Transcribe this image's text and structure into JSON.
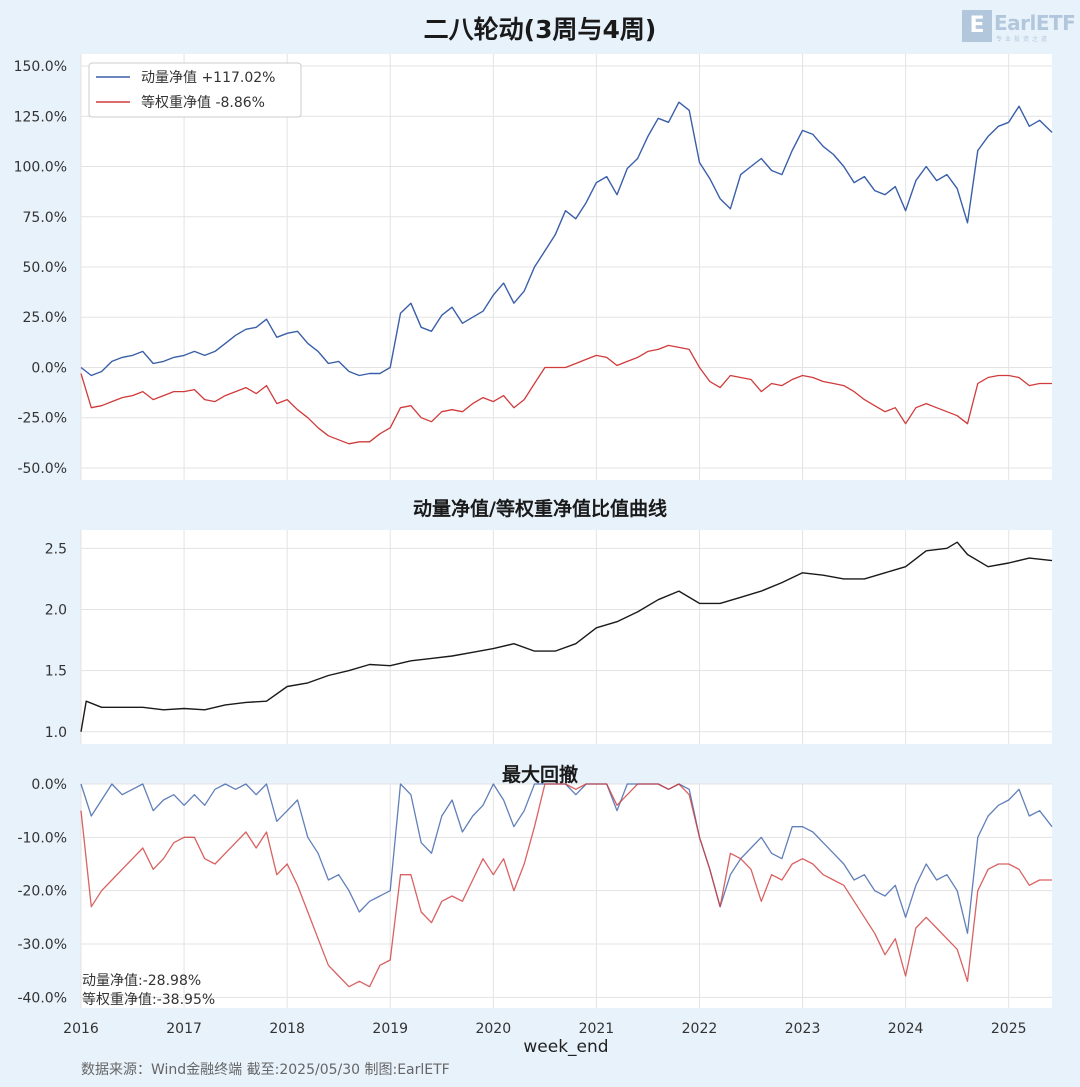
{
  "title": "二八轮动(3周与4周)",
  "logo": {
    "text": "EarlETF",
    "box_glyph": "E",
    "subtitle": "专业投资之道"
  },
  "colors": {
    "background": "#e8f2fb",
    "plot_bg": "#ffffff",
    "momentum": "#3a5fa8",
    "equal": "#d03b3b",
    "ratio": "#1a1a1a"
  },
  "panels": {
    "ratio_title": "动量净值/等权重净值比值曲线",
    "drawdown_title": "最大回撤"
  },
  "xlabel": "week_end",
  "source": "数据来源：Wind金融终端 截至:2025/05/30 制图:EarlETF",
  "legend": {
    "momentum": "动量净值  +117.02%",
    "equal": "等权重净值  -8.86%"
  },
  "drawdown_notes": {
    "momentum": "动量净值:-28.98%",
    "equal": "等权重净值:-38.95%"
  },
  "chart_data": [
    {
      "type": "line",
      "title": "二八轮动(3周与4周)",
      "ylabel": "",
      "ylim": [
        -0.56,
        1.56
      ],
      "yticks": [
        1.5,
        1.25,
        1.0,
        0.75,
        0.5,
        0.25,
        0.0,
        -0.25,
        -0.5
      ],
      "ytick_labels": [
        "150.0%",
        "125.0%",
        "100.0%",
        "75.0%",
        "50.0%",
        "25.0%",
        "0.0%",
        "-25.0%",
        "-50.0%"
      ],
      "xlim": [
        2016.0,
        2025.42
      ],
      "series": [
        {
          "name": "动量净值",
          "x": [
            2016.0,
            2016.1,
            2016.2,
            2016.3,
            2016.4,
            2016.5,
            2016.6,
            2016.7,
            2016.8,
            2016.9,
            2017.0,
            2017.1,
            2017.2,
            2017.3,
            2017.4,
            2017.5,
            2017.6,
            2017.7,
            2017.8,
            2017.9,
            2018.0,
            2018.1,
            2018.2,
            2018.3,
            2018.4,
            2018.5,
            2018.6,
            2018.7,
            2018.8,
            2018.9,
            2019.0,
            2019.1,
            2019.2,
            2019.3,
            2019.4,
            2019.5,
            2019.6,
            2019.7,
            2019.8,
            2019.9,
            2020.0,
            2020.1,
            2020.2,
            2020.3,
            2020.4,
            2020.5,
            2020.6,
            2020.7,
            2020.8,
            2020.9,
            2021.0,
            2021.1,
            2021.2,
            2021.3,
            2021.4,
            2021.5,
            2021.6,
            2021.7,
            2021.8,
            2021.9,
            2022.0,
            2022.1,
            2022.2,
            2022.3,
            2022.4,
            2022.5,
            2022.6,
            2022.7,
            2022.8,
            2022.9,
            2023.0,
            2023.1,
            2023.2,
            2023.3,
            2023.4,
            2023.5,
            2023.6,
            2023.7,
            2023.8,
            2023.9,
            2024.0,
            2024.1,
            2024.2,
            2024.3,
            2024.4,
            2024.5,
            2024.6,
            2024.7,
            2024.8,
            2024.9,
            2025.0,
            2025.1,
            2025.2,
            2025.3,
            2025.42
          ],
          "values": [
            0.0,
            -0.04,
            -0.02,
            0.03,
            0.05,
            0.06,
            0.08,
            0.02,
            0.03,
            0.05,
            0.06,
            0.08,
            0.06,
            0.08,
            0.12,
            0.16,
            0.19,
            0.2,
            0.24,
            0.15,
            0.17,
            0.18,
            0.12,
            0.08,
            0.02,
            0.03,
            -0.02,
            -0.04,
            -0.03,
            -0.03,
            0.0,
            0.27,
            0.32,
            0.2,
            0.18,
            0.26,
            0.3,
            0.22,
            0.25,
            0.28,
            0.36,
            0.42,
            0.32,
            0.38,
            0.5,
            0.58,
            0.66,
            0.78,
            0.74,
            0.82,
            0.92,
            0.95,
            0.86,
            0.99,
            1.04,
            1.15,
            1.24,
            1.22,
            1.32,
            1.28,
            1.02,
            0.94,
            0.84,
            0.79,
            0.96,
            1.0,
            1.04,
            0.98,
            0.96,
            1.08,
            1.18,
            1.16,
            1.1,
            1.06,
            1.0,
            0.92,
            0.95,
            0.88,
            0.86,
            0.9,
            0.78,
            0.93,
            1.0,
            0.93,
            0.96,
            0.89,
            0.72,
            1.08,
            1.15,
            1.2,
            1.22,
            1.3,
            1.2,
            1.23,
            1.17
          ]
        },
        {
          "name": "等权重净值",
          "x": [
            2016.0,
            2016.1,
            2016.2,
            2016.3,
            2016.4,
            2016.5,
            2016.6,
            2016.7,
            2016.8,
            2016.9,
            2017.0,
            2017.1,
            2017.2,
            2017.3,
            2017.4,
            2017.5,
            2017.6,
            2017.7,
            2017.8,
            2017.9,
            2018.0,
            2018.1,
            2018.2,
            2018.3,
            2018.4,
            2018.5,
            2018.6,
            2018.7,
            2018.8,
            2018.9,
            2019.0,
            2019.1,
            2019.2,
            2019.3,
            2019.4,
            2019.5,
            2019.6,
            2019.7,
            2019.8,
            2019.9,
            2020.0,
            2020.1,
            2020.2,
            2020.3,
            2020.4,
            2020.5,
            2020.6,
            2020.7,
            2020.8,
            2020.9,
            2021.0,
            2021.1,
            2021.2,
            2021.3,
            2021.4,
            2021.5,
            2021.6,
            2021.7,
            2021.8,
            2021.9,
            2022.0,
            2022.1,
            2022.2,
            2022.3,
            2022.4,
            2022.5,
            2022.6,
            2022.7,
            2022.8,
            2022.9,
            2023.0,
            2023.1,
            2023.2,
            2023.3,
            2023.4,
            2023.5,
            2023.6,
            2023.7,
            2023.8,
            2023.9,
            2024.0,
            2024.1,
            2024.2,
            2024.3,
            2024.4,
            2024.5,
            2024.6,
            2024.7,
            2024.8,
            2024.9,
            2025.0,
            2025.1,
            2025.2,
            2025.3,
            2025.42
          ],
          "values": [
            -0.03,
            -0.2,
            -0.19,
            -0.17,
            -0.15,
            -0.14,
            -0.12,
            -0.16,
            -0.14,
            -0.12,
            -0.12,
            -0.11,
            -0.16,
            -0.17,
            -0.14,
            -0.12,
            -0.1,
            -0.13,
            -0.09,
            -0.18,
            -0.16,
            -0.21,
            -0.25,
            -0.3,
            -0.34,
            -0.36,
            -0.38,
            -0.37,
            -0.37,
            -0.33,
            -0.3,
            -0.2,
            -0.19,
            -0.25,
            -0.27,
            -0.22,
            -0.21,
            -0.22,
            -0.18,
            -0.15,
            -0.17,
            -0.14,
            -0.2,
            -0.16,
            -0.08,
            0.0,
            0.0,
            0.0,
            0.02,
            0.04,
            0.06,
            0.05,
            0.01,
            0.03,
            0.05,
            0.08,
            0.09,
            0.11,
            0.1,
            0.09,
            0.0,
            -0.07,
            -0.1,
            -0.04,
            -0.05,
            -0.06,
            -0.12,
            -0.08,
            -0.09,
            -0.06,
            -0.04,
            -0.05,
            -0.07,
            -0.08,
            -0.09,
            -0.12,
            -0.16,
            -0.19,
            -0.22,
            -0.2,
            -0.28,
            -0.2,
            -0.18,
            -0.2,
            -0.22,
            -0.24,
            -0.28,
            -0.08,
            -0.05,
            -0.04,
            -0.04,
            -0.05,
            -0.09,
            -0.08,
            -0.08
          ]
        }
      ]
    },
    {
      "type": "line",
      "title": "动量净值/等权重净值比值曲线",
      "ylim": [
        0.9,
        2.65
      ],
      "yticks": [
        2.5,
        2.0,
        1.5,
        1.0
      ],
      "ytick_labels": [
        "2.5",
        "2.0",
        "1.5",
        "1.0"
      ],
      "xlim": [
        2016.0,
        2025.42
      ],
      "series": [
        {
          "name": "ratio",
          "x": [
            2016.0,
            2016.05,
            2016.2,
            2016.4,
            2016.6,
            2016.8,
            2017.0,
            2017.2,
            2017.4,
            2017.6,
            2017.8,
            2018.0,
            2018.2,
            2018.4,
            2018.6,
            2018.8,
            2019.0,
            2019.2,
            2019.4,
            2019.6,
            2019.8,
            2020.0,
            2020.2,
            2020.4,
            2020.6,
            2020.8,
            2021.0,
            2021.2,
            2021.4,
            2021.6,
            2021.8,
            2022.0,
            2022.2,
            2022.4,
            2022.6,
            2022.8,
            2023.0,
            2023.2,
            2023.4,
            2023.6,
            2023.8,
            2024.0,
            2024.2,
            2024.4,
            2024.5,
            2024.6,
            2024.8,
            2025.0,
            2025.2,
            2025.42
          ],
          "values": [
            1.0,
            1.25,
            1.2,
            1.2,
            1.2,
            1.18,
            1.19,
            1.18,
            1.22,
            1.24,
            1.25,
            1.37,
            1.4,
            1.46,
            1.5,
            1.55,
            1.54,
            1.58,
            1.6,
            1.62,
            1.65,
            1.68,
            1.72,
            1.66,
            1.66,
            1.72,
            1.85,
            1.9,
            1.98,
            2.08,
            2.15,
            2.05,
            2.05,
            2.1,
            2.15,
            2.22,
            2.3,
            2.28,
            2.25,
            2.25,
            2.3,
            2.35,
            2.48,
            2.5,
            2.55,
            2.45,
            2.35,
            2.38,
            2.42,
            2.4
          ]
        }
      ]
    },
    {
      "type": "line",
      "title": "最大回撤",
      "ylim": [
        -0.42,
        0.0
      ],
      "yticks": [
        0.0,
        -0.1,
        -0.2,
        -0.3,
        -0.4
      ],
      "ytick_labels": [
        "0.0%",
        "-10.0%",
        "-20.0%",
        "-30.0%",
        "-40.0%"
      ],
      "xlim": [
        2016.0,
        2025.42
      ],
      "series": [
        {
          "name": "动量净值",
          "x": [
            2016.0,
            2016.1,
            2016.2,
            2016.3,
            2016.4,
            2016.5,
            2016.6,
            2016.7,
            2016.8,
            2016.9,
            2017.0,
            2017.1,
            2017.2,
            2017.3,
            2017.4,
            2017.5,
            2017.6,
            2017.7,
            2017.8,
            2017.9,
            2018.0,
            2018.1,
            2018.2,
            2018.3,
            2018.4,
            2018.5,
            2018.6,
            2018.7,
            2018.8,
            2018.9,
            2019.0,
            2019.1,
            2019.2,
            2019.3,
            2019.4,
            2019.5,
            2019.6,
            2019.7,
            2019.8,
            2019.9,
            2020.0,
            2020.1,
            2020.2,
            2020.3,
            2020.4,
            2020.5,
            2020.6,
            2020.7,
            2020.8,
            2020.9,
            2021.0,
            2021.1,
            2021.2,
            2021.3,
            2021.4,
            2021.5,
            2021.6,
            2021.7,
            2021.8,
            2021.9,
            2022.0,
            2022.1,
            2022.2,
            2022.3,
            2022.4,
            2022.5,
            2022.6,
            2022.7,
            2022.8,
            2022.9,
            2023.0,
            2023.1,
            2023.2,
            2023.3,
            2023.4,
            2023.5,
            2023.6,
            2023.7,
            2023.8,
            2023.9,
            2024.0,
            2024.1,
            2024.2,
            2024.3,
            2024.4,
            2024.5,
            2024.6,
            2024.7,
            2024.8,
            2024.9,
            2025.0,
            2025.1,
            2025.2,
            2025.3,
            2025.42
          ],
          "values": [
            0.0,
            -0.06,
            -0.03,
            0.0,
            -0.02,
            -0.01,
            0.0,
            -0.05,
            -0.03,
            -0.02,
            -0.04,
            -0.02,
            -0.04,
            -0.01,
            0.0,
            -0.01,
            0.0,
            -0.02,
            0.0,
            -0.07,
            -0.05,
            -0.03,
            -0.1,
            -0.13,
            -0.18,
            -0.17,
            -0.2,
            -0.24,
            -0.22,
            -0.21,
            -0.2,
            0.0,
            -0.02,
            -0.11,
            -0.13,
            -0.06,
            -0.03,
            -0.09,
            -0.06,
            -0.04,
            0.0,
            -0.03,
            -0.08,
            -0.05,
            0.0,
            0.0,
            0.0,
            0.0,
            -0.02,
            0.0,
            0.0,
            0.0,
            -0.05,
            0.0,
            0.0,
            0.0,
            0.0,
            -0.01,
            0.0,
            -0.01,
            -0.1,
            -0.16,
            -0.23,
            -0.17,
            -0.14,
            -0.12,
            -0.1,
            -0.13,
            -0.14,
            -0.08,
            -0.08,
            -0.09,
            -0.11,
            -0.13,
            -0.15,
            -0.18,
            -0.17,
            -0.2,
            -0.21,
            -0.19,
            -0.25,
            -0.19,
            -0.15,
            -0.18,
            -0.17,
            -0.2,
            -0.28,
            -0.1,
            -0.06,
            -0.04,
            -0.03,
            -0.01,
            -0.06,
            -0.05,
            -0.08
          ]
        },
        {
          "name": "等权重净值",
          "x": [
            2016.0,
            2016.1,
            2016.2,
            2016.3,
            2016.4,
            2016.5,
            2016.6,
            2016.7,
            2016.8,
            2016.9,
            2017.0,
            2017.1,
            2017.2,
            2017.3,
            2017.4,
            2017.5,
            2017.6,
            2017.7,
            2017.8,
            2017.9,
            2018.0,
            2018.1,
            2018.2,
            2018.3,
            2018.4,
            2018.5,
            2018.6,
            2018.7,
            2018.8,
            2018.9,
            2019.0,
            2019.1,
            2019.2,
            2019.3,
            2019.4,
            2019.5,
            2019.6,
            2019.7,
            2019.8,
            2019.9,
            2020.0,
            2020.1,
            2020.2,
            2020.3,
            2020.4,
            2020.5,
            2020.6,
            2020.7,
            2020.8,
            2020.9,
            2021.0,
            2021.1,
            2021.2,
            2021.3,
            2021.4,
            2021.5,
            2021.6,
            2021.7,
            2021.8,
            2021.9,
            2022.0,
            2022.1,
            2022.2,
            2022.3,
            2022.4,
            2022.5,
            2022.6,
            2022.7,
            2022.8,
            2022.9,
            2023.0,
            2023.1,
            2023.2,
            2023.3,
            2023.4,
            2023.5,
            2023.6,
            2023.7,
            2023.8,
            2023.9,
            2024.0,
            2024.1,
            2024.2,
            2024.3,
            2024.4,
            2024.5,
            2024.6,
            2024.7,
            2024.8,
            2024.9,
            2025.0,
            2025.1,
            2025.2,
            2025.3,
            2025.42
          ],
          "values": [
            -0.05,
            -0.23,
            -0.2,
            -0.18,
            -0.16,
            -0.14,
            -0.12,
            -0.16,
            -0.14,
            -0.11,
            -0.1,
            -0.1,
            -0.14,
            -0.15,
            -0.13,
            -0.11,
            -0.09,
            -0.12,
            -0.09,
            -0.17,
            -0.15,
            -0.19,
            -0.24,
            -0.29,
            -0.34,
            -0.36,
            -0.38,
            -0.37,
            -0.38,
            -0.34,
            -0.33,
            -0.17,
            -0.17,
            -0.24,
            -0.26,
            -0.22,
            -0.21,
            -0.22,
            -0.18,
            -0.14,
            -0.17,
            -0.14,
            -0.2,
            -0.15,
            -0.08,
            0.0,
            0.0,
            0.0,
            -0.01,
            0.0,
            0.0,
            0.0,
            -0.04,
            -0.02,
            0.0,
            0.0,
            0.0,
            -0.01,
            0.0,
            -0.02,
            -0.1,
            -0.16,
            -0.23,
            -0.13,
            -0.14,
            -0.16,
            -0.22,
            -0.17,
            -0.18,
            -0.15,
            -0.14,
            -0.15,
            -0.17,
            -0.18,
            -0.19,
            -0.22,
            -0.25,
            -0.28,
            -0.32,
            -0.29,
            -0.36,
            -0.27,
            -0.25,
            -0.27,
            -0.29,
            -0.31,
            -0.37,
            -0.2,
            -0.16,
            -0.15,
            -0.15,
            -0.16,
            -0.19,
            -0.18,
            -0.18
          ]
        }
      ]
    }
  ],
  "xaxis": {
    "ticks": [
      2016,
      2017,
      2018,
      2019,
      2020,
      2021,
      2022,
      2023,
      2024,
      2025
    ],
    "labels": [
      "2016",
      "2017",
      "2018",
      "2019",
      "2020",
      "2021",
      "2022",
      "2023",
      "2024",
      "2025"
    ]
  }
}
